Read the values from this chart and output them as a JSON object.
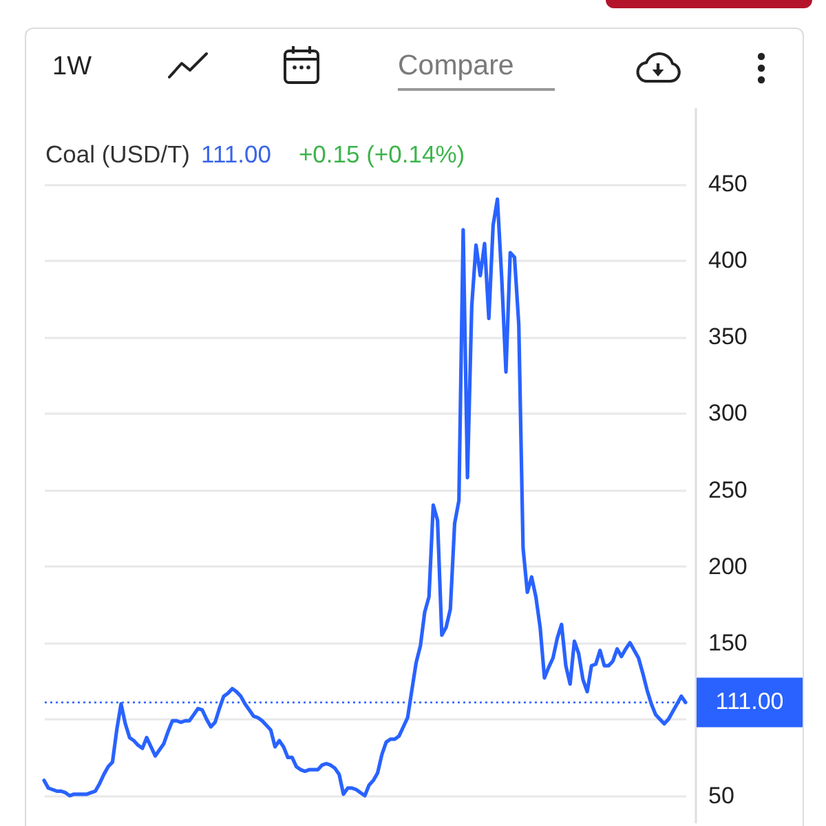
{
  "chart_data": {
    "type": "line",
    "title": "Coal (USD/T)",
    "categories": [
      null,
      null,
      null,
      null,
      null,
      null,
      null,
      null,
      null,
      null,
      null,
      null,
      null,
      null,
      null,
      null,
      null,
      null,
      null,
      null,
      null,
      null,
      null,
      null,
      null,
      null,
      null,
      null,
      null,
      null,
      null,
      null,
      null,
      null,
      null,
      null,
      null,
      null,
      null,
      null,
      null,
      null,
      null,
      null,
      null,
      null,
      null,
      null,
      null,
      null,
      null,
      null,
      null,
      null,
      null,
      null,
      null,
      null,
      null,
      null,
      null,
      null,
      null,
      null,
      null,
      null,
      null,
      null,
      null,
      null,
      null,
      null,
      null,
      null,
      null,
      null,
      null,
      null,
      null,
      null,
      null,
      null,
      null,
      null,
      null,
      null,
      null,
      null,
      null,
      null,
      null,
      null,
      null,
      null,
      null,
      null,
      null,
      null,
      null,
      null,
      null,
      null,
      null,
      null,
      null,
      null,
      null,
      null,
      null,
      null,
      null,
      null,
      null,
      null,
      null,
      null,
      null,
      null,
      null,
      null,
      null,
      null,
      null,
      null,
      null,
      null,
      null,
      null,
      null,
      null,
      null,
      null,
      null,
      null,
      null,
      null,
      null,
      null,
      null,
      null,
      null,
      null,
      null,
      null,
      null,
      null,
      null,
      null,
      null,
      null,
      null
    ],
    "series": [
      {
        "color": "#2962ff",
        "values": [
          60,
          55,
          54,
          53,
          53,
          52,
          50,
          51,
          51,
          51,
          51,
          52,
          53,
          58,
          64,
          69,
          72,
          93,
          110,
          97,
          88,
          86,
          83,
          81,
          88,
          82,
          76,
          80,
          84,
          92,
          99,
          99,
          98,
          99,
          99,
          103,
          107,
          106,
          100,
          95,
          98,
          107,
          115,
          117,
          120,
          118,
          115,
          110,
          106,
          102,
          101,
          99,
          96,
          93,
          82,
          86,
          82,
          75,
          75,
          69,
          67,
          66,
          67,
          67,
          67,
          70,
          71,
          70,
          68,
          64,
          51,
          55,
          55,
          54,
          52,
          50,
          57,
          60,
          65,
          77,
          85,
          87,
          87,
          89,
          95,
          101,
          119,
          137,
          148,
          170,
          180,
          240,
          230,
          155,
          160,
          172,
          228,
          243,
          420,
          258,
          370,
          410,
          390,
          411,
          362,
          423,
          440,
          389,
          327,
          405,
          402,
          358,
          212,
          183,
          193,
          180,
          160,
          127,
          134,
          140,
          153,
          162,
          135,
          123,
          151,
          143,
          126,
          118,
          135,
          136,
          145,
          135,
          135,
          138,
          146,
          141,
          146,
          150,
          145,
          140,
          130,
          119,
          110,
          103,
          100,
          97,
          100,
          105,
          110,
          115,
          111
        ]
      }
    ],
    "ylim": [
      32,
      500
    ],
    "yticks": [
      50,
      {
        "value": 100,
        "label": null
      },
      150,
      200,
      250,
      300,
      350,
      400,
      450
    ],
    "grid": "y",
    "tick_labels": "y",
    "ref_lines": [
      {
        "axis": "y",
        "value": 111,
        "label": "111.00",
        "color": "#2962ff",
        "line_style": "dotted"
      }
    ],
    "annotations": [
      "1W",
      "Compare",
      "111.00",
      "+0.15 (+0.14%)"
    ]
  }
}
